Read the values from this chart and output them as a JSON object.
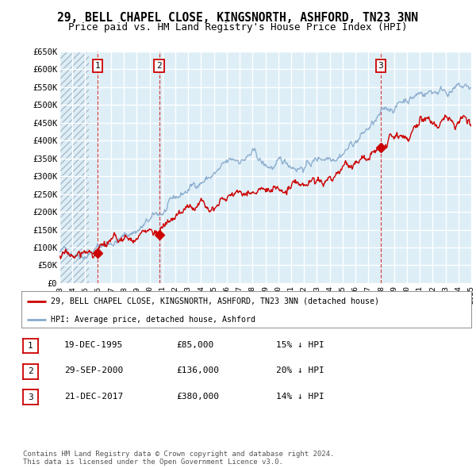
{
  "title": "29, BELL CHAPEL CLOSE, KINGSNORTH, ASHFORD, TN23 3NN",
  "subtitle": "Price paid vs. HM Land Registry's House Price Index (HPI)",
  "ylim": [
    0,
    650000
  ],
  "yticks": [
    0,
    50000,
    100000,
    150000,
    200000,
    250000,
    300000,
    350000,
    400000,
    450000,
    500000,
    550000,
    600000,
    650000
  ],
  "ytick_labels": [
    "£0",
    "£50K",
    "£100K",
    "£150K",
    "£200K",
    "£250K",
    "£300K",
    "£350K",
    "£400K",
    "£450K",
    "£500K",
    "£550K",
    "£600K",
    "£650K"
  ],
  "background_color": "#ffffff",
  "plot_bg_color": "#ddeef7",
  "grid_color": "#ffffff",
  "sale_dates": [
    1995.96,
    2000.74,
    2017.97
  ],
  "sale_prices": [
    85000,
    136000,
    380000
  ],
  "sale_color": "#cc0000",
  "hpi_color": "#88aacc",
  "vline_color_solid": "#cc3333",
  "vline_color_dashed": "#888888",
  "legend_label_red": "29, BELL CHAPEL CLOSE, KINGSNORTH, ASHFORD, TN23 3NN (detached house)",
  "legend_label_blue": "HPI: Average price, detached house, Ashford",
  "table_rows": [
    [
      "1",
      "19-DEC-1995",
      "£85,000",
      "15% ↓ HPI"
    ],
    [
      "2",
      "29-SEP-2000",
      "£136,000",
      "20% ↓ HPI"
    ],
    [
      "3",
      "21-DEC-2017",
      "£380,000",
      "14% ↓ HPI"
    ]
  ],
  "footnote": "Contains HM Land Registry data © Crown copyright and database right 2024.\nThis data is licensed under the Open Government Licence v3.0.",
  "title_fontsize": 10.5,
  "subtitle_fontsize": 9
}
